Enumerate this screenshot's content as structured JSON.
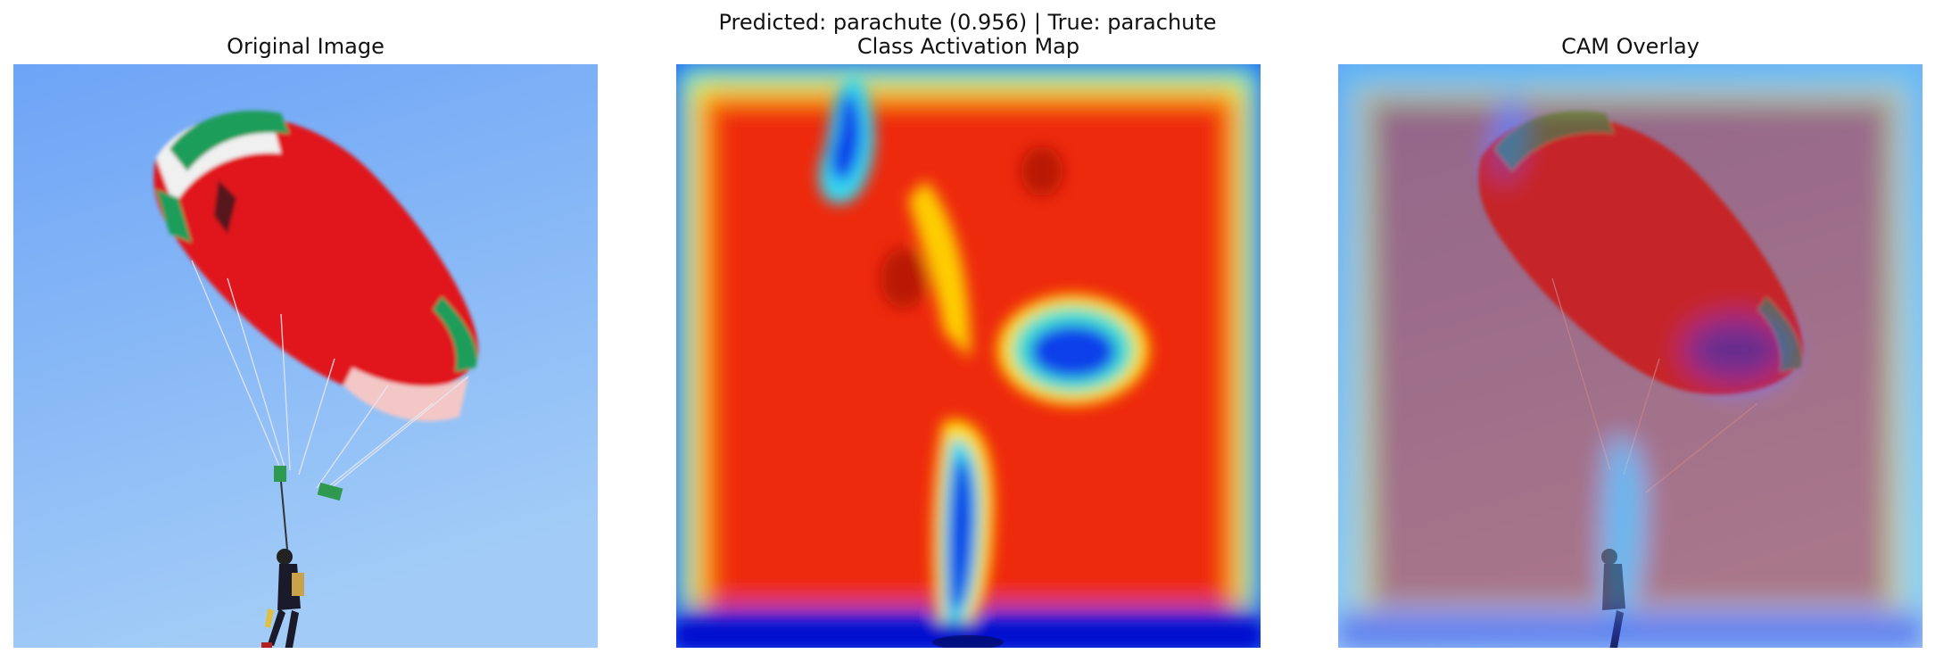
{
  "figure": {
    "suptitle": "Predicted: parachute (0.956) | True: parachute",
    "panels": [
      {
        "title": "Original Image"
      },
      {
        "title": "Class Activation Map"
      },
      {
        "title": "CAM Overlay"
      }
    ]
  },
  "colors": {
    "sky_top": "#6fa6f6",
    "sky_bottom": "#9fcaf8",
    "cam_hot": "#e62200",
    "cam_mid": "#ffd800",
    "cam_cool": "#0033e6",
    "canopy_red": "#e0191c",
    "canopy_green": "#1f9d5a"
  }
}
